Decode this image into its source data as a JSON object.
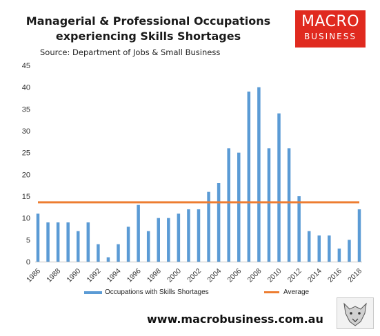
{
  "header": {
    "title_line1": "Managerial & Professional Occupations",
    "title_line2": "experiencing Skills Shortages",
    "source": "Source: Department of Jobs & Small Business"
  },
  "logo": {
    "line1": "MACRO",
    "line2": "BUSINESS"
  },
  "footer": {
    "url": "www.macrobusiness.com.au"
  },
  "colors": {
    "bar": "#5b9bd5",
    "average": "#ed7d31",
    "logo_bg": "#e02a1f"
  },
  "chart_data": {
    "type": "bar",
    "x": [
      1986,
      1987,
      1988,
      1989,
      1990,
      1991,
      1992,
      1993,
      1994,
      1995,
      1996,
      1997,
      1998,
      1999,
      2000,
      2001,
      2002,
      2003,
      2004,
      2005,
      2006,
      2007,
      2008,
      2009,
      2010,
      2011,
      2012,
      2013,
      2014,
      2015,
      2016,
      2017,
      2018
    ],
    "xtick_labels": [
      "1986",
      "1988",
      "1990",
      "1992",
      "1994",
      "1996",
      "1998",
      "2000",
      "2002",
      "2004",
      "2006",
      "2008",
      "2010",
      "2012",
      "2014",
      "2016",
      "2018"
    ],
    "series": [
      {
        "name": "Occupations with Skills Shortages",
        "kind": "bar",
        "values": [
          11,
          9,
          9,
          9,
          7,
          9,
          4,
          1,
          4,
          8,
          13,
          7,
          10,
          10,
          11,
          12,
          12,
          16,
          18,
          26,
          25,
          39,
          40,
          26,
          34,
          26,
          15,
          7,
          6,
          6,
          3,
          5,
          12
        ]
      },
      {
        "name": "Average",
        "kind": "line",
        "value": 13.6
      }
    ],
    "ylim": [
      0,
      45
    ],
    "yticks": [
      0,
      5,
      10,
      15,
      20,
      25,
      30,
      35,
      40,
      45
    ],
    "grid": false,
    "legend": "bottom"
  }
}
